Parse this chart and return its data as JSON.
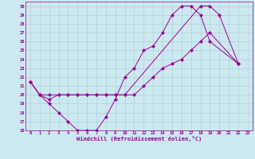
{
  "xlabel": "Windchill (Refroidissement éolien,°C)",
  "bg_color": "#cce8f0",
  "grid_color": "#aacccc",
  "line_color": "#990099",
  "xlim": [
    -0.5,
    23.5
  ],
  "ylim": [
    16,
    30.5
  ],
  "xticks": [
    0,
    1,
    2,
    3,
    4,
    5,
    6,
    7,
    8,
    9,
    10,
    11,
    12,
    13,
    14,
    15,
    16,
    17,
    18,
    19,
    20,
    21,
    22,
    23
  ],
  "yticks": [
    16,
    17,
    18,
    19,
    20,
    21,
    22,
    23,
    24,
    25,
    26,
    27,
    28,
    29,
    30
  ],
  "s1_x": [
    0,
    1,
    2,
    3,
    4,
    5,
    6,
    7,
    8,
    9,
    10,
    11,
    12,
    13,
    14,
    15,
    16,
    17,
    18,
    19,
    22
  ],
  "s1_y": [
    21.5,
    20,
    19,
    18,
    17,
    16,
    16,
    16,
    17.5,
    19.5,
    22,
    23,
    25,
    25.5,
    27,
    29,
    30,
    30,
    29,
    26,
    23.5
  ],
  "s2_x": [
    0,
    1,
    2,
    3,
    4,
    5,
    6,
    7,
    8,
    9,
    10,
    18,
    19,
    20,
    22
  ],
  "s2_y": [
    21.5,
    20,
    19.5,
    20,
    20,
    20,
    20,
    20,
    20,
    20,
    20,
    30,
    30,
    29,
    23.5
  ],
  "s3_x": [
    0,
    1,
    2,
    3,
    4,
    5,
    6,
    7,
    8,
    9,
    10,
    11,
    12,
    13,
    14,
    15,
    16,
    17,
    18,
    19,
    22
  ],
  "s3_y": [
    21.5,
    20,
    20,
    20,
    20,
    20,
    20,
    20,
    20,
    20,
    20,
    20,
    21,
    22,
    23,
    23.5,
    24,
    25,
    26,
    27,
    23.5
  ]
}
